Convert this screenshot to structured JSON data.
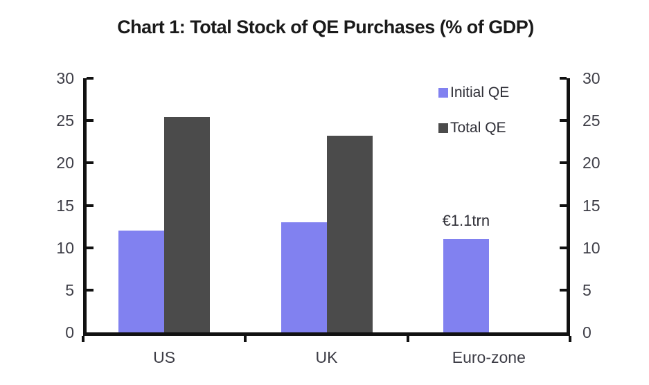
{
  "chart_data": {
    "type": "bar",
    "title": "Chart 1: Total Stock of QE Purchases (% of GDP)",
    "categories": [
      "US",
      "UK",
      "Euro-zone"
    ],
    "series": [
      {
        "name": "Initial QE",
        "color": "#8181f0",
        "values": [
          12,
          13,
          11
        ]
      },
      {
        "name": "Total QE",
        "color": "#4b4b4b",
        "values": [
          25.4,
          23.2,
          null
        ]
      }
    ],
    "annotations": [
      {
        "text": "€1.1trn",
        "category": "Euro-zone",
        "category_index": 2,
        "y_value": 13.2
      }
    ],
    "y_axis": {
      "min": 0,
      "max": 30,
      "tick_step": 5,
      "ticks": [
        0,
        5,
        10,
        15,
        20,
        25,
        30
      ],
      "sides": [
        "left",
        "right"
      ]
    },
    "x_axis": {
      "labels": [
        "US",
        "UK",
        "Euro-zone"
      ]
    },
    "legend": {
      "position": "top-right"
    },
    "grid": false,
    "colors": {
      "axis": "#111111",
      "tick_label": "#3d3d46",
      "title": "#1a1a1a",
      "legend_text": "#2e2e36",
      "background": "#ffffff"
    }
  }
}
